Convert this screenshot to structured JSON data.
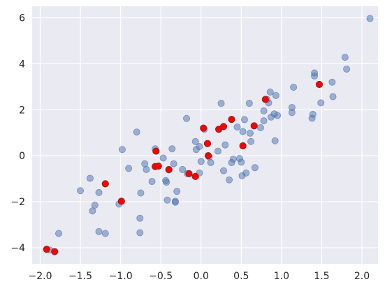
{
  "chart_data": {
    "type": "scatter",
    "title": "",
    "xlabel": "",
    "ylabel": "",
    "xlim": [
      -2.1,
      2.2
    ],
    "ylim": [
      -4.7,
      6.5
    ],
    "xticks": [
      -2.0,
      -1.5,
      -1.0,
      -0.5,
      0.0,
      0.5,
      1.0,
      1.5,
      2.0
    ],
    "xtick_labels": [
      "−2.0",
      "−1.5",
      "−1.0",
      "−0.5",
      "0.0",
      "0.5",
      "1.0",
      "1.5",
      "2.0"
    ],
    "yticks": [
      -4,
      -2,
      0,
      2,
      4,
      6
    ],
    "ytick_labels": [
      "−4",
      "−2",
      "0",
      "2",
      "4",
      "6"
    ],
    "grid": true,
    "background_color": "#EAEAF2",
    "series": [
      {
        "color": "#4C72B0",
        "alpha": 0.5,
        "points": [
          [
            -1.88,
            -4.1
          ],
          [
            -1.77,
            -3.38
          ],
          [
            -1.5,
            -1.52
          ],
          [
            -1.38,
            -0.98
          ],
          [
            -1.35,
            -2.4
          ],
          [
            -1.32,
            -2.15
          ],
          [
            -1.27,
            -1.6
          ],
          [
            -1.27,
            -3.3
          ],
          [
            -1.19,
            -3.38
          ],
          [
            -1.19,
            -1.22
          ],
          [
            -1.02,
            -2.1
          ],
          [
            -0.98,
            0.27
          ],
          [
            -0.9,
            -0.55
          ],
          [
            -0.8,
            1.03
          ],
          [
            -0.76,
            -2.72
          ],
          [
            -0.76,
            -3.35
          ],
          [
            -0.75,
            -1.62
          ],
          [
            -0.7,
            -0.35
          ],
          [
            -0.68,
            -0.6
          ],
          [
            -0.61,
            -1.12
          ],
          [
            -0.57,
            0.3
          ],
          [
            -0.56,
            0.2
          ],
          [
            -0.47,
            -0.1
          ],
          [
            -0.44,
            -1.08
          ],
          [
            -0.43,
            -1.15
          ],
          [
            -0.42,
            -1.93
          ],
          [
            -0.4,
            -0.62
          ],
          [
            -0.36,
            0.3
          ],
          [
            -0.34,
            -0.35
          ],
          [
            -0.32,
            -1.98
          ],
          [
            -0.32,
            -2.02
          ],
          [
            -0.3,
            -1.55
          ],
          [
            -0.23,
            -0.6
          ],
          [
            -0.18,
            1.62
          ],
          [
            -0.17,
            -0.78
          ],
          [
            -0.07,
            0.62
          ],
          [
            -0.06,
            0.27
          ],
          [
            -0.02,
            -0.75
          ],
          [
            -0.02,
            0.4
          ],
          [
            0.0,
            -0.25
          ],
          [
            0.04,
            1.15
          ],
          [
            0.08,
            0.52
          ],
          [
            0.1,
            -0.05
          ],
          [
            0.12,
            -0.3
          ],
          [
            0.21,
            0.2
          ],
          [
            0.25,
            2.28
          ],
          [
            0.28,
            -0.65
          ],
          [
            0.3,
            0.47
          ],
          [
            0.35,
            -1.05
          ],
          [
            0.38,
            -0.3
          ],
          [
            0.4,
            -0.15
          ],
          [
            0.45,
            1.25
          ],
          [
            0.48,
            -0.12
          ],
          [
            0.5,
            -0.28
          ],
          [
            0.51,
            -0.87
          ],
          [
            0.52,
            1.05
          ],
          [
            0.54,
            1.57
          ],
          [
            0.56,
            -0.75
          ],
          [
            0.6,
            2.28
          ],
          [
            0.61,
            0.98
          ],
          [
            0.62,
            0.62
          ],
          [
            0.67,
            -0.52
          ],
          [
            0.74,
            1.22
          ],
          [
            0.78,
            1.95
          ],
          [
            0.78,
            1.52
          ],
          [
            0.82,
            2.45
          ],
          [
            0.84,
            2.3
          ],
          [
            0.86,
            2.77
          ],
          [
            0.87,
            1.68
          ],
          [
            0.91,
            1.82
          ],
          [
            0.92,
            0.65
          ],
          [
            0.93,
            2.62
          ],
          [
            0.95,
            1.75
          ],
          [
            1.13,
            2.1
          ],
          [
            1.13,
            1.88
          ],
          [
            1.15,
            2.98
          ],
          [
            1.38,
            1.63
          ],
          [
            1.39,
            1.8
          ],
          [
            1.41,
            3.6
          ],
          [
            1.41,
            3.47
          ],
          [
            1.49,
            2.3
          ],
          [
            1.63,
            3.2
          ],
          [
            1.64,
            2.57
          ],
          [
            1.79,
            4.28
          ],
          [
            1.81,
            3.77
          ],
          [
            2.1,
            5.97
          ]
        ]
      },
      {
        "color": "#FF0000",
        "edge_color": "#8B2A2A",
        "alpha": 1,
        "points": [
          [
            -1.92,
            -4.07
          ],
          [
            -1.82,
            -4.17
          ],
          [
            -1.19,
            -1.22
          ],
          [
            -0.99,
            -1.98
          ],
          [
            -0.57,
            -0.47
          ],
          [
            -0.56,
            0.2
          ],
          [
            -0.53,
            -0.45
          ],
          [
            -0.4,
            -0.6
          ],
          [
            -0.15,
            -0.78
          ],
          [
            -0.07,
            -0.9
          ],
          [
            0.03,
            1.2
          ],
          [
            0.08,
            0.53
          ],
          [
            0.09,
            0.0
          ],
          [
            0.22,
            1.15
          ],
          [
            0.28,
            1.27
          ],
          [
            0.38,
            1.58
          ],
          [
            0.52,
            0.43
          ],
          [
            0.66,
            1.3
          ],
          [
            0.8,
            2.45
          ],
          [
            1.47,
            3.1
          ]
        ]
      }
    ]
  }
}
